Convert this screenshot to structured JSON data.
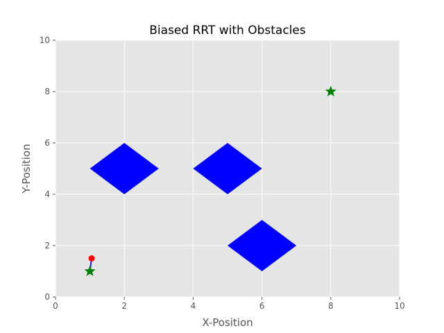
{
  "chart_data": {
    "type": "scatter",
    "title": "Biased RRT with Obstacles",
    "xlabel": "X-Position",
    "ylabel": "Y-Position",
    "xlim": [
      0,
      10
    ],
    "ylim": [
      0,
      10
    ],
    "xticks": [
      "0",
      "2",
      "4",
      "6",
      "8",
      "10"
    ],
    "yticks": [
      "0",
      "2",
      "4",
      "6",
      "8",
      "10"
    ],
    "grid": true,
    "obstacles": [
      {
        "shape": "diamond",
        "center": [
          2,
          5
        ],
        "half_width": 1,
        "half_height": 1,
        "color": "#0000ff"
      },
      {
        "shape": "diamond",
        "center": [
          5,
          5
        ],
        "half_width": 1,
        "half_height": 1,
        "color": "#0000ff"
      },
      {
        "shape": "diamond",
        "center": [
          6,
          2
        ],
        "half_width": 1,
        "half_height": 1,
        "color": "#0000ff"
      }
    ],
    "start": {
      "x": 1,
      "y": 1,
      "marker": "star",
      "color": "#008000"
    },
    "goal": {
      "x": 8,
      "y": 8,
      "marker": "star",
      "color": "#008000"
    },
    "tree_edges": [
      {
        "from": [
          1,
          1
        ],
        "to": [
          1.05,
          1.5
        ],
        "color": "#0000ff"
      }
    ],
    "tree_nodes": [
      {
        "x": 1.05,
        "y": 1.5,
        "color": "#ff0000"
      }
    ],
    "colors": {
      "plot_background": "#e5e5e5",
      "grid": "#ffffff"
    }
  }
}
